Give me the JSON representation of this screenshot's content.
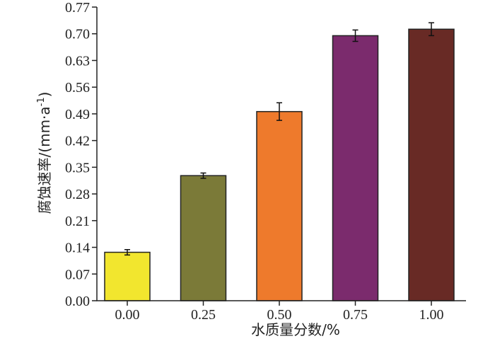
{
  "chart_data": {
    "type": "bar",
    "xlabel": "水质量分数/%",
    "ylabel_main": "腐蚀速率/(mm·a",
    "ylabel_sup": "-1",
    "ylabel_close": ")",
    "ylim": [
      0,
      0.77
    ],
    "yticks": [
      "0.00",
      "0.07",
      "0.14",
      "0.21",
      "0.28",
      "0.35",
      "0.42",
      "0.49",
      "0.56",
      "0.63",
      "0.70",
      "0.77"
    ],
    "categories": [
      "0.00",
      "0.25",
      "0.50",
      "0.75",
      "1.00"
    ],
    "values": [
      0.127,
      0.328,
      0.496,
      0.695,
      0.712
    ],
    "errors": [
      0.007,
      0.007,
      0.023,
      0.015,
      0.017
    ],
    "colors": [
      "#f2e62e",
      "#7b7a38",
      "#ee7a2c",
      "#7b2b6d",
      "#682a25"
    ]
  }
}
